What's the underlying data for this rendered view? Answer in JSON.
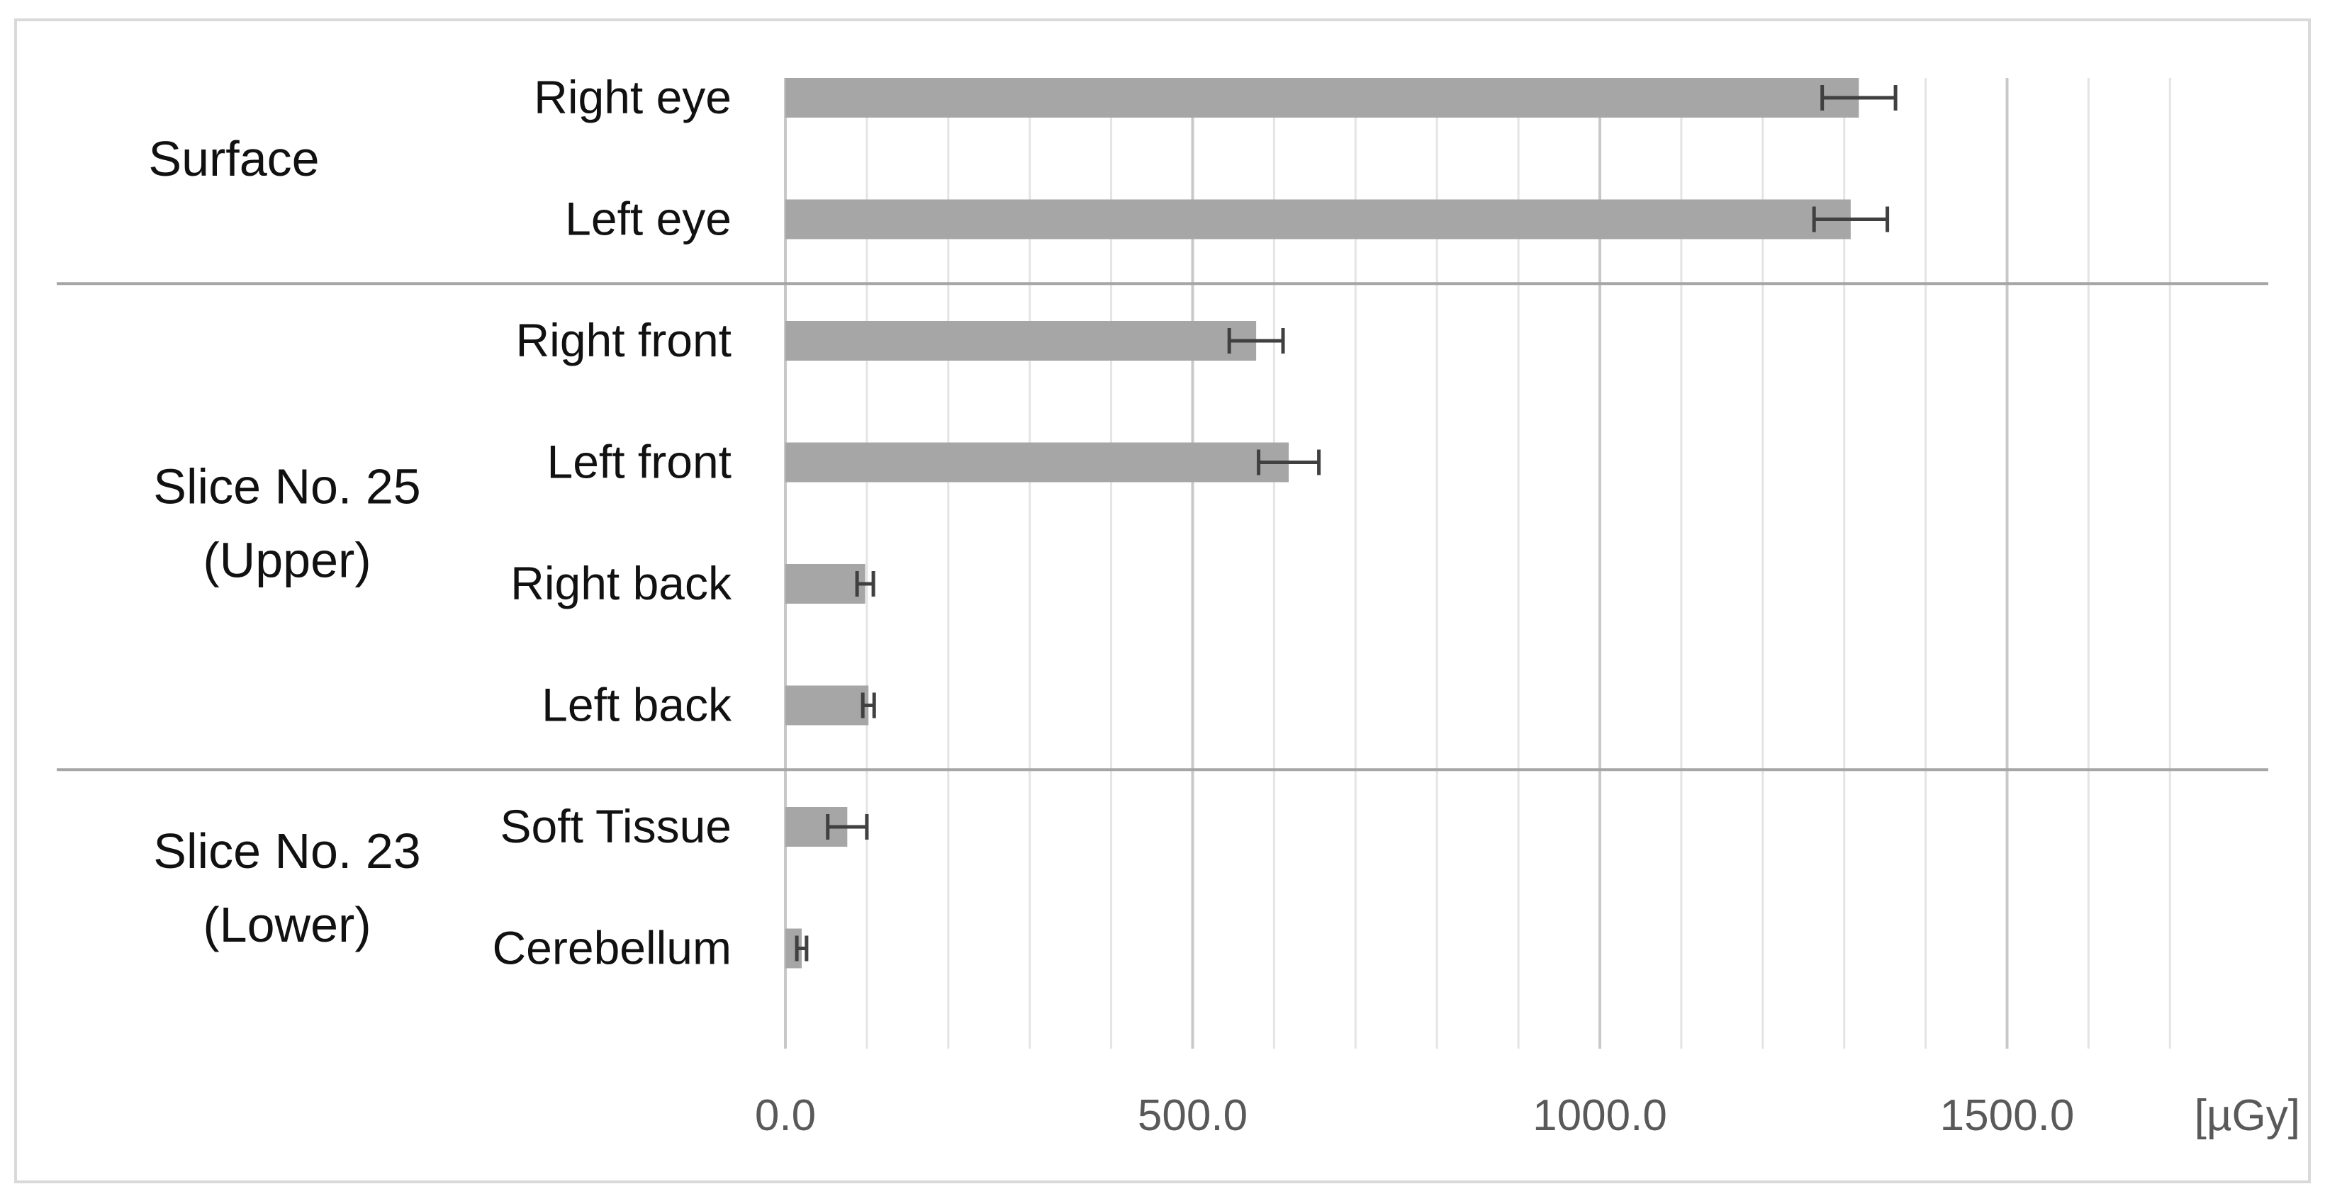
{
  "chart_data": {
    "type": "bar",
    "orientation": "horizontal",
    "categories": [
      "Right eye",
      "Left eye",
      "Right front",
      "Left front",
      "Right back",
      "Left back",
      "Soft Tissue",
      "Cerebellum"
    ],
    "groups": [
      {
        "label_lines": [
          "Surface"
        ],
        "categories": [
          "Right eye",
          "Left eye"
        ]
      },
      {
        "label_lines": [
          "Slice No. 25",
          "(Upper)"
        ],
        "categories": [
          "Right front",
          "Left front",
          "Right back",
          "Left back"
        ]
      },
      {
        "label_lines": [
          "Slice No. 23",
          "(Lower)"
        ],
        "categories": [
          "Soft Tissue",
          "Cerebellum"
        ]
      }
    ],
    "series": [
      {
        "values": [
          1318,
          1308,
          578,
          618,
          98,
          102,
          76,
          20
        ],
        "errors": [
          45,
          45,
          33,
          37,
          10,
          7,
          24,
          6
        ],
        "color": "#a6a6a6"
      }
    ],
    "xlim": [
      0,
      1800
    ],
    "xticks": [
      0,
      500,
      1000,
      1500
    ],
    "xtick_labels": [
      "0.0",
      "500.0",
      "1000.0",
      "1500.0"
    ],
    "minor_grid_step": 100,
    "unit": "[µGy]",
    "grid": true,
    "legend": "none"
  }
}
